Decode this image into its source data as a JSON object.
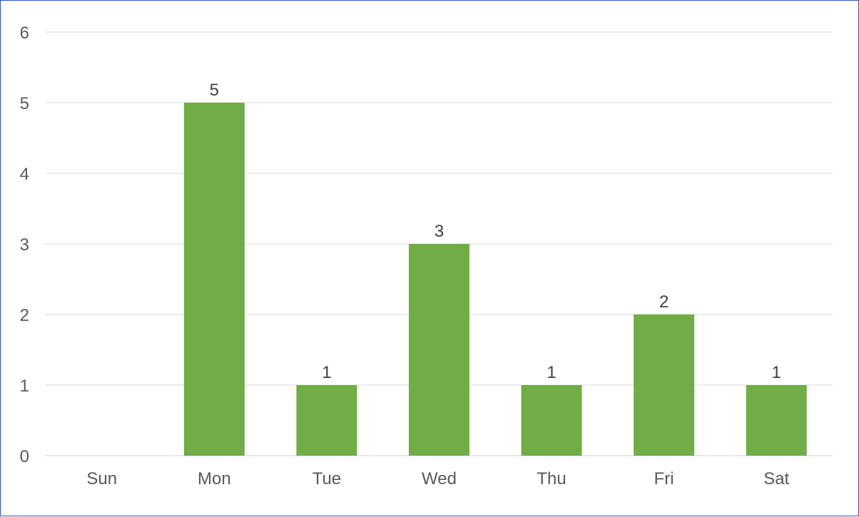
{
  "chart_data": {
    "type": "bar",
    "title": "",
    "xlabel": "",
    "ylabel": "",
    "categories": [
      "Sun",
      "Mon",
      "Tue",
      "Wed",
      "Thu",
      "Fri",
      "Sat"
    ],
    "values": [
      0,
      5,
      1,
      3,
      1,
      2,
      1
    ],
    "data_labels": [
      "",
      "5",
      "1",
      "3",
      "1",
      "2",
      "1"
    ],
    "ylim": [
      0,
      6
    ],
    "yticks": [
      "0",
      "1",
      "2",
      "3",
      "4",
      "5",
      "6"
    ],
    "grid": true,
    "legend": "none",
    "colors": {
      "bar": "#70ad47",
      "grid": "#d9d9d9",
      "frame": "#2e55d4",
      "tick_text": "#595959",
      "value_text": "#404040"
    }
  }
}
